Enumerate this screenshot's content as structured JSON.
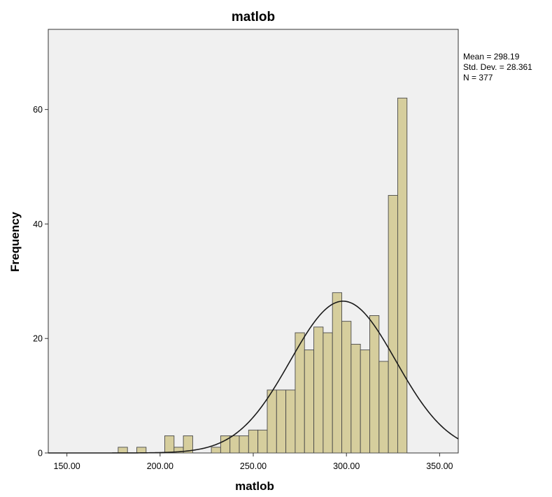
{
  "chart_data": {
    "type": "bar",
    "subtype": "histogram",
    "title": "matlob",
    "xlabel": "matlob",
    "ylabel": "Frequency",
    "xlim": [
      140,
      360
    ],
    "ylim": [
      0,
      74
    ],
    "x_ticks": [
      150,
      200,
      250,
      300,
      350
    ],
    "x_tick_labels": [
      "150.00",
      "200.00",
      "250.00",
      "300.00",
      "350.00"
    ],
    "y_ticks": [
      0,
      20,
      40,
      60
    ],
    "y_tick_labels": [
      "0",
      "20",
      "40",
      "60"
    ],
    "grid": false,
    "bin_width": 5,
    "bins": [
      {
        "start": 177.5,
        "value": 1
      },
      {
        "start": 187.5,
        "value": 1
      },
      {
        "start": 202.5,
        "value": 3
      },
      {
        "start": 207.5,
        "value": 1
      },
      {
        "start": 212.5,
        "value": 3
      },
      {
        "start": 227.5,
        "value": 1
      },
      {
        "start": 232.5,
        "value": 3
      },
      {
        "start": 237.5,
        "value": 3
      },
      {
        "start": 242.5,
        "value": 3
      },
      {
        "start": 247.5,
        "value": 4
      },
      {
        "start": 252.5,
        "value": 4
      },
      {
        "start": 257.5,
        "value": 11
      },
      {
        "start": 262.5,
        "value": 11
      },
      {
        "start": 267.5,
        "value": 11
      },
      {
        "start": 272.5,
        "value": 21
      },
      {
        "start": 277.5,
        "value": 18
      },
      {
        "start": 282.5,
        "value": 22
      },
      {
        "start": 287.5,
        "value": 21
      },
      {
        "start": 292.5,
        "value": 28
      },
      {
        "start": 297.5,
        "value": 23
      },
      {
        "start": 302.5,
        "value": 19
      },
      {
        "start": 307.5,
        "value": 18
      },
      {
        "start": 312.5,
        "value": 24
      },
      {
        "start": 317.5,
        "value": 16
      },
      {
        "start": 322.5,
        "value": 45
      },
      {
        "start": 327.5,
        "value": 62
      }
    ],
    "normal_curve": {
      "mean": 298.19,
      "std_dev": 28.361,
      "n": 377
    },
    "stats_text": [
      "Mean = 298.19",
      "Std. Dev. = 28.361",
      "N = 377"
    ],
    "colors": {
      "bar_fill": "#d6ce9d",
      "bar_stroke": "#4a4a4a",
      "plot_background": "#f0f0f0",
      "curve": "#1a1a1a",
      "axis": "#333333"
    }
  }
}
